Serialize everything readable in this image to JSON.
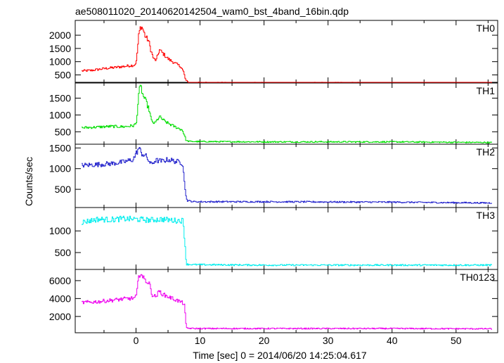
{
  "title": "ae508011020_20140620142504_wam0_bst_4band_16bin.qdp",
  "xlabel": "Time [sec] 0 = 2014/06/20 14:25:04.617",
  "ylabel": "Counts/sec",
  "chart_data": {
    "type": "line",
    "title": "ae508011020_20140620142504_wam0_bst_4band_16bin.qdp",
    "xlabel": "Time [sec] 0 = 2014/06/20 14:25:04.617",
    "ylabel": "Counts/sec",
    "xlim": [
      -9.5,
      56.5
    ],
    "x_ticks": [
      0,
      10,
      20,
      30,
      40,
      50
    ],
    "legend": "none",
    "grid": false,
    "panels": [
      {
        "name": "TH0",
        "color": "#ff0000",
        "ylim": [
          220,
          2560
        ],
        "y_ticks": [
          500,
          1000,
          1500,
          2000
        ],
        "points": [
          [
            -8.5,
            650
          ],
          [
            -7,
            670
          ],
          [
            -5,
            740
          ],
          [
            -3,
            790
          ],
          [
            -1,
            850
          ],
          [
            -0.3,
            870
          ],
          [
            0,
            1000
          ],
          [
            0.4,
            2050
          ],
          [
            0.7,
            2350
          ],
          [
            1,
            2250
          ],
          [
            1.4,
            1950
          ],
          [
            1.9,
            1800
          ],
          [
            2.3,
            1400
          ],
          [
            2.7,
            1100
          ],
          [
            3.1,
            1050
          ],
          [
            3.6,
            1450
          ],
          [
            4.2,
            1300
          ],
          [
            5,
            1100
          ],
          [
            6,
            950
          ],
          [
            7,
            800
          ],
          [
            7.4,
            600
          ],
          [
            7.7,
            300
          ],
          [
            8.2,
            210
          ],
          [
            15,
            200
          ],
          [
            30,
            200
          ],
          [
            45,
            200
          ],
          [
            55.5,
            190
          ]
        ]
      },
      {
        "name": "TH1",
        "color": "#00dd00",
        "ylim": [
          130,
          1950
        ],
        "y_ticks": [
          500,
          1000,
          1500
        ],
        "points": [
          [
            -8.5,
            620
          ],
          [
            -6,
            640
          ],
          [
            -4,
            660
          ],
          [
            -2,
            650
          ],
          [
            -0.5,
            680
          ],
          [
            0,
            750
          ],
          [
            0.4,
            1700
          ],
          [
            0.7,
            1850
          ],
          [
            1,
            1600
          ],
          [
            1.5,
            1400
          ],
          [
            2,
            1150
          ],
          [
            2.4,
            800
          ],
          [
            2.9,
            750
          ],
          [
            3.6,
            950
          ],
          [
            4.5,
            800
          ],
          [
            6,
            650
          ],
          [
            7.2,
            550
          ],
          [
            7.5,
            400
          ],
          [
            7.8,
            230
          ],
          [
            8.5,
            210
          ],
          [
            20,
            200
          ],
          [
            40,
            200
          ],
          [
            55.5,
            180
          ]
        ]
      },
      {
        "name": "TH2",
        "color": "#2222cc",
        "ylim": [
          60,
          1590
        ],
        "y_ticks": [
          500,
          1000,
          1500
        ],
        "points": [
          [
            -8.5,
            1080
          ],
          [
            -6,
            1100
          ],
          [
            -4,
            1120
          ],
          [
            -2,
            1160
          ],
          [
            -0.5,
            1220
          ],
          [
            0.4,
            1500
          ],
          [
            0.8,
            1370
          ],
          [
            1.5,
            1300
          ],
          [
            2.3,
            1100
          ],
          [
            3,
            1200
          ],
          [
            4,
            1180
          ],
          [
            5,
            1220
          ],
          [
            6,
            1180
          ],
          [
            7,
            1150
          ],
          [
            7.3,
            1100
          ],
          [
            7.6,
            500
          ],
          [
            7.9,
            230
          ],
          [
            9,
            200
          ],
          [
            20,
            200
          ],
          [
            40,
            190
          ],
          [
            55.5,
            170
          ]
        ]
      },
      {
        "name": "TH3",
        "color": "#00eeee",
        "ylim": [
          110,
          1540
        ],
        "y_ticks": [
          500,
          1000
        ],
        "points": [
          [
            -8.5,
            1200
          ],
          [
            -6,
            1270
          ],
          [
            -4,
            1260
          ],
          [
            -2,
            1280
          ],
          [
            0,
            1270
          ],
          [
            2,
            1250
          ],
          [
            4,
            1270
          ],
          [
            6,
            1240
          ],
          [
            7.3,
            1240
          ],
          [
            7.6,
            700
          ],
          [
            7.8,
            230
          ],
          [
            9,
            220
          ],
          [
            20,
            210
          ],
          [
            40,
            210
          ],
          [
            55.5,
            210
          ]
        ]
      },
      {
        "name": "TH0123",
        "color": "#ee00ee",
        "ylim": [
          180,
          7250
        ],
        "y_ticks": [
          2000,
          4000,
          6000
        ],
        "points": [
          [
            -8.5,
            3550
          ],
          [
            -6,
            3650
          ],
          [
            -4,
            3800
          ],
          [
            -2,
            3950
          ],
          [
            -0.3,
            4050
          ],
          [
            0,
            4300
          ],
          [
            0.4,
            6500
          ],
          [
            0.7,
            7000
          ],
          [
            1,
            6300
          ],
          [
            1.5,
            6000
          ],
          [
            2,
            5700
          ],
          [
            2.5,
            4400
          ],
          [
            3,
            4200
          ],
          [
            3.6,
            4800
          ],
          [
            4.3,
            4400
          ],
          [
            5,
            4200
          ],
          [
            6,
            3900
          ],
          [
            7,
            3600
          ],
          [
            7.5,
            3400
          ],
          [
            7.8,
            700
          ],
          [
            9,
            650
          ],
          [
            20,
            650
          ],
          [
            40,
            650
          ],
          [
            55.5,
            620
          ]
        ]
      }
    ]
  }
}
